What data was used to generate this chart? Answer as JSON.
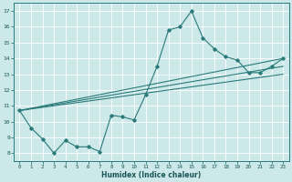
{
  "xlabel": "Humidex (Indice chaleur)",
  "ylabel": "",
  "xlim": [
    -0.5,
    23.5
  ],
  "ylim": [
    7.5,
    17.5
  ],
  "xticks": [
    0,
    1,
    2,
    3,
    4,
    5,
    6,
    7,
    8,
    9,
    10,
    11,
    12,
    13,
    14,
    15,
    16,
    17,
    18,
    19,
    20,
    21,
    22,
    23
  ],
  "yticks": [
    8,
    9,
    10,
    11,
    12,
    13,
    14,
    15,
    16,
    17
  ],
  "bg_color": "#cce8e8",
  "line_color": "#2a7a7a",
  "grid_color": "#ffffff",
  "series_main": {
    "x": [
      0,
      1,
      2,
      3,
      4,
      5,
      6,
      7,
      8,
      9,
      10,
      11,
      12,
      13,
      14,
      15,
      16,
      17,
      18,
      19,
      20,
      21,
      22,
      23
    ],
    "y": [
      10.7,
      9.6,
      8.9,
      8.0,
      8.8,
      8.4,
      8.4,
      8.1,
      10.4,
      10.3,
      10.1,
      11.7,
      13.5,
      15.8,
      16.0,
      17.0,
      15.3,
      14.6,
      14.1,
      13.9,
      13.1,
      13.1,
      13.5,
      14.0
    ]
  },
  "trend_lines": [
    {
      "x": [
        0,
        23
      ],
      "y": [
        10.7,
        14.0
      ]
    },
    {
      "x": [
        0,
        23
      ],
      "y": [
        10.7,
        13.5
      ]
    },
    {
      "x": [
        0,
        23
      ],
      "y": [
        10.7,
        13.0
      ]
    }
  ]
}
